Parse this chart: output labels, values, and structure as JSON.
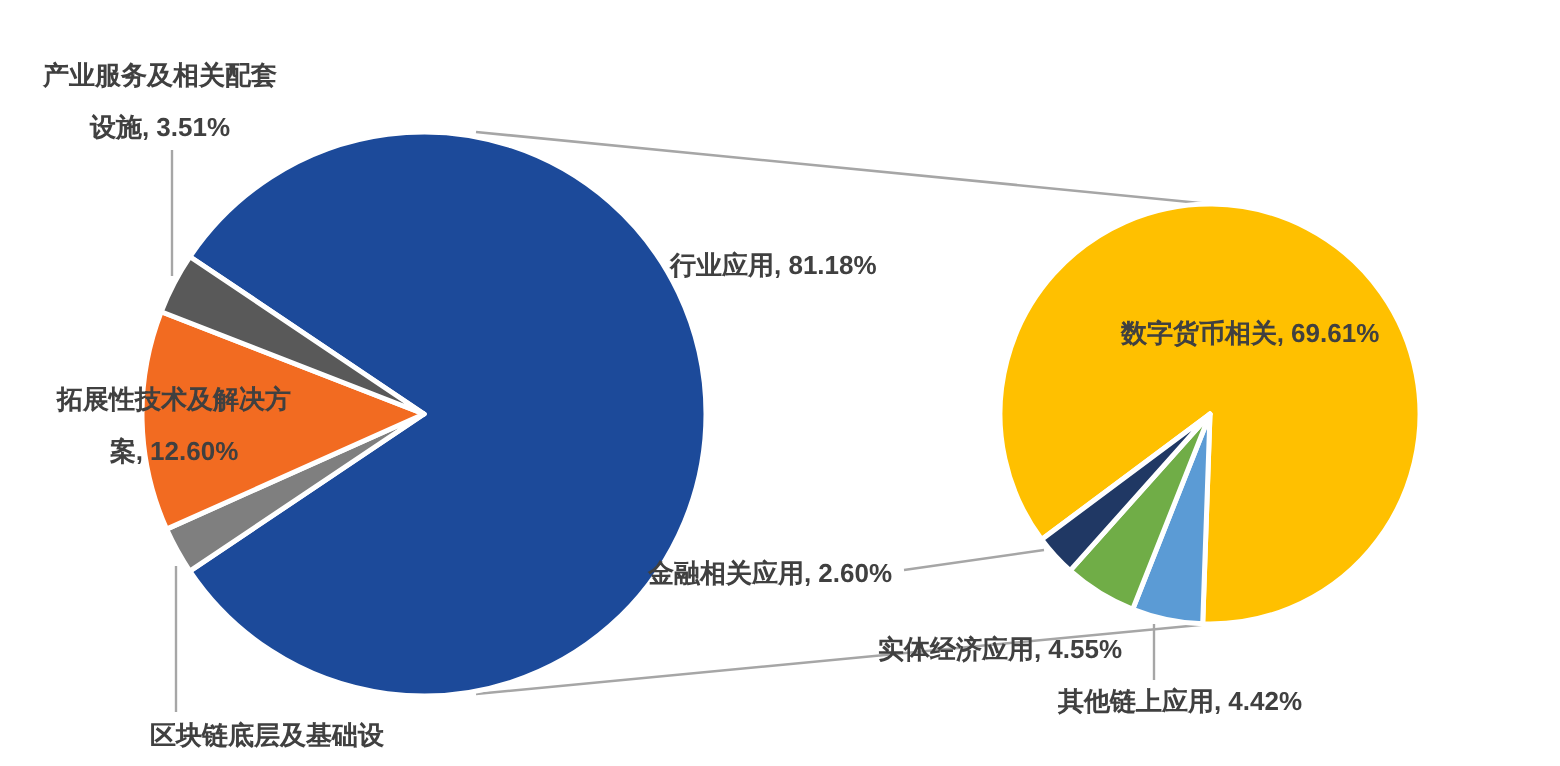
{
  "chart_data": [
    {
      "type": "pie",
      "categories": [
        "行业应用",
        "区块链底层及基础设",
        "拓展性技术及解决方案",
        "产业服务及相关配套设施"
      ],
      "values": [
        81.18,
        2.71,
        12.6,
        3.51
      ],
      "colors": [
        "#1c4a9a",
        "#7f7f7f",
        "#f26b21",
        "#595959"
      ],
      "value_labels": [
        "81.18%",
        null,
        "12.60%",
        "3.51%"
      ]
    },
    {
      "type": "pie",
      "categories": [
        "数字货币相关",
        "其他链上应用",
        "实体经济应用",
        "金融相关应用"
      ],
      "values": [
        69.61,
        4.42,
        4.55,
        2.6
      ],
      "colors": [
        "#ffc000",
        "#5b9bd5",
        "#70ad47",
        "#203864"
      ],
      "value_labels": [
        "69.61%",
        "4.42%",
        "4.55%",
        "2.60%"
      ]
    }
  ]
}
